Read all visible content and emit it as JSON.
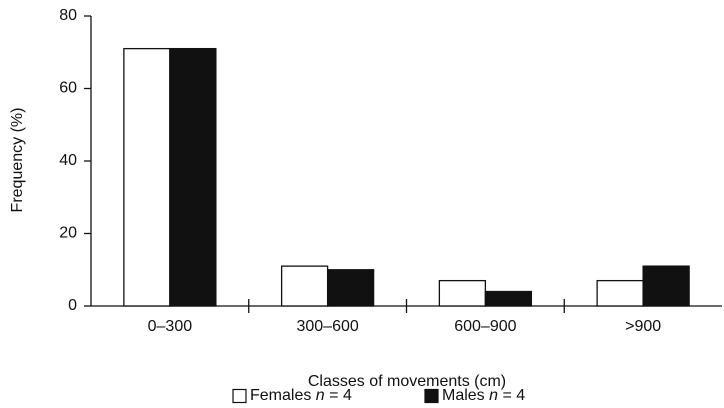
{
  "chart_data": {
    "type": "bar",
    "x_label": "Classes of movements (cm)",
    "y_label": "Frequency (%)",
    "categories": [
      "0–300",
      "300–600",
      "600–900",
      ">900"
    ],
    "series": [
      {
        "name": "Females n = 4",
        "color": "#ffffff",
        "values": [
          71,
          11,
          7,
          7
        ]
      },
      {
        "name": "Males n = 4",
        "color": "#111111",
        "values": [
          71,
          10,
          4,
          11
        ]
      }
    ],
    "ylim": [
      0,
      80
    ],
    "yticks": [
      0,
      20,
      40,
      60,
      80
    ],
    "grid": false
  }
}
